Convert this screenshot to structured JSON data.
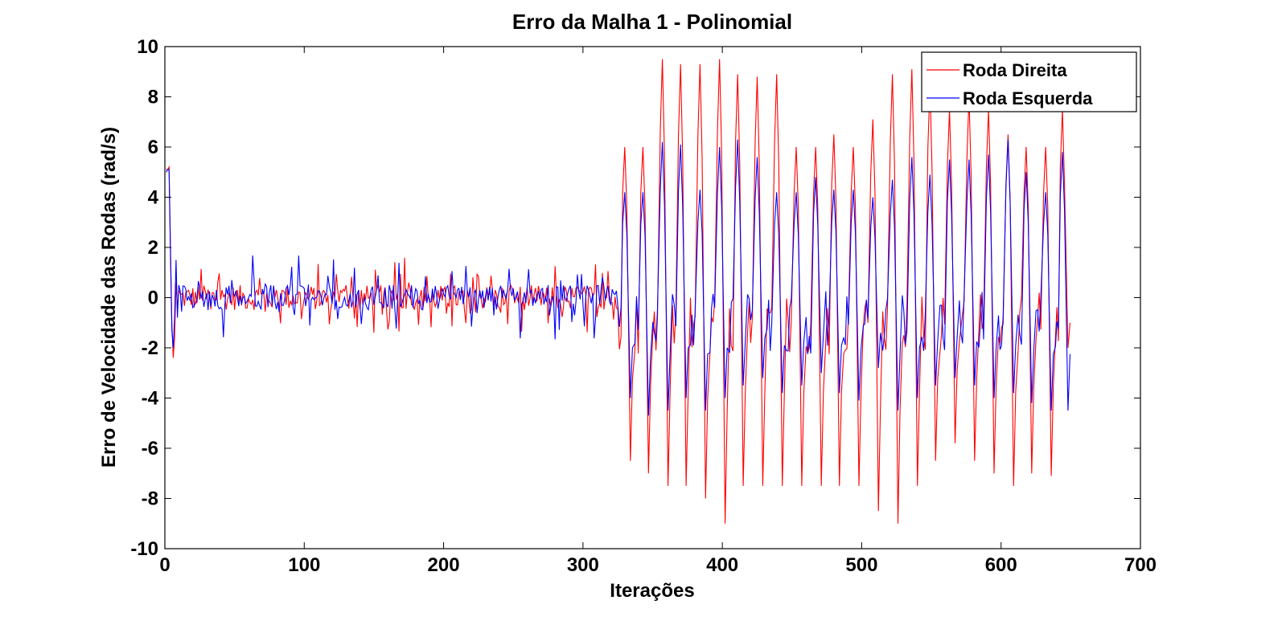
{
  "chart_data": {
    "type": "line",
    "title": "Erro da Malha 1 - Polinomial",
    "xlabel": "Iterações",
    "ylabel": "Erro de Velocidade das Rodas (rad/s)",
    "xlim": [
      0,
      700
    ],
    "ylim": [
      -10,
      10
    ],
    "xticks": [
      0,
      100,
      200,
      300,
      400,
      500,
      600,
      700
    ],
    "yticks": [
      -10,
      -8,
      -6,
      -4,
      -2,
      0,
      2,
      4,
      6,
      8,
      10
    ],
    "grid": false,
    "legend_position": "top-right",
    "x_end": 650,
    "series": [
      {
        "name": "Roda Direita",
        "color": "#ff0000",
        "peaks_x": [
          330,
          343,
          357,
          370,
          384,
          398,
          411,
          425,
          439,
          453,
          467,
          480,
          494,
          508,
          522,
          536,
          549,
          563,
          577,
          591,
          605,
          618,
          632,
          644
        ],
        "peaks_max": [
          6.0,
          6.0,
          9.5,
          9.3,
          9.3,
          9.5,
          8.9,
          8.8,
          8.9,
          6.0,
          6.0,
          6.5,
          6.0,
          7.1,
          8.9,
          9.1,
          8.5,
          7.5,
          8.0,
          7.5,
          6.5,
          6.0,
          6.0,
          7.5
        ],
        "peaks_min": [
          -6.5,
          -7.0,
          -7.5,
          -7.5,
          -8.0,
          -9.0,
          -7.5,
          -7.5,
          -7.5,
          -7.5,
          -7.5,
          -7.5,
          -7.5,
          -8.5,
          -9.0,
          -7.5,
          -6.5,
          -5.8,
          -6.5,
          -7.0,
          -7.5,
          -7.0,
          -7.1,
          -2.0
        ],
        "transient": [
          5.1,
          5.1,
          5.2,
          2.2,
          -1.0,
          -2.4,
          -1.6,
          0.6,
          -0.4,
          0.3
        ]
      },
      {
        "name": "Roda Esquerda",
        "color": "#0000ff",
        "peaks_x": [
          330,
          343,
          357,
          370,
          384,
          398,
          411,
          425,
          439,
          453,
          467,
          480,
          494,
          508,
          522,
          536,
          549,
          563,
          577,
          591,
          605,
          618,
          632,
          644
        ],
        "peaks_max": [
          4.2,
          4.2,
          6.2,
          6.1,
          4.3,
          6.0,
          6.3,
          5.6,
          4.2,
          4.2,
          4.8,
          4.3,
          4.3,
          4.0,
          4.7,
          5.6,
          4.9,
          5.5,
          5.5,
          5.7,
          6.3,
          5.0,
          4.2,
          5.8
        ],
        "peaks_min": [
          -4.0,
          -4.7,
          -4.5,
          -4.0,
          -4.5,
          -4.0,
          -3.5,
          -3.2,
          -3.8,
          -3.5,
          -3.0,
          -3.8,
          -4.1,
          -2.8,
          -4.5,
          -4.0,
          -3.5,
          -3.2,
          -3.5,
          -4.0,
          -3.8,
          -4.2,
          -4.5,
          -4.5
        ],
        "transient": [
          5.0,
          5.1,
          5.1,
          1.8,
          -1.3,
          -2.0,
          -0.8,
          1.5,
          -0.8,
          0.5
        ]
      }
    ]
  }
}
